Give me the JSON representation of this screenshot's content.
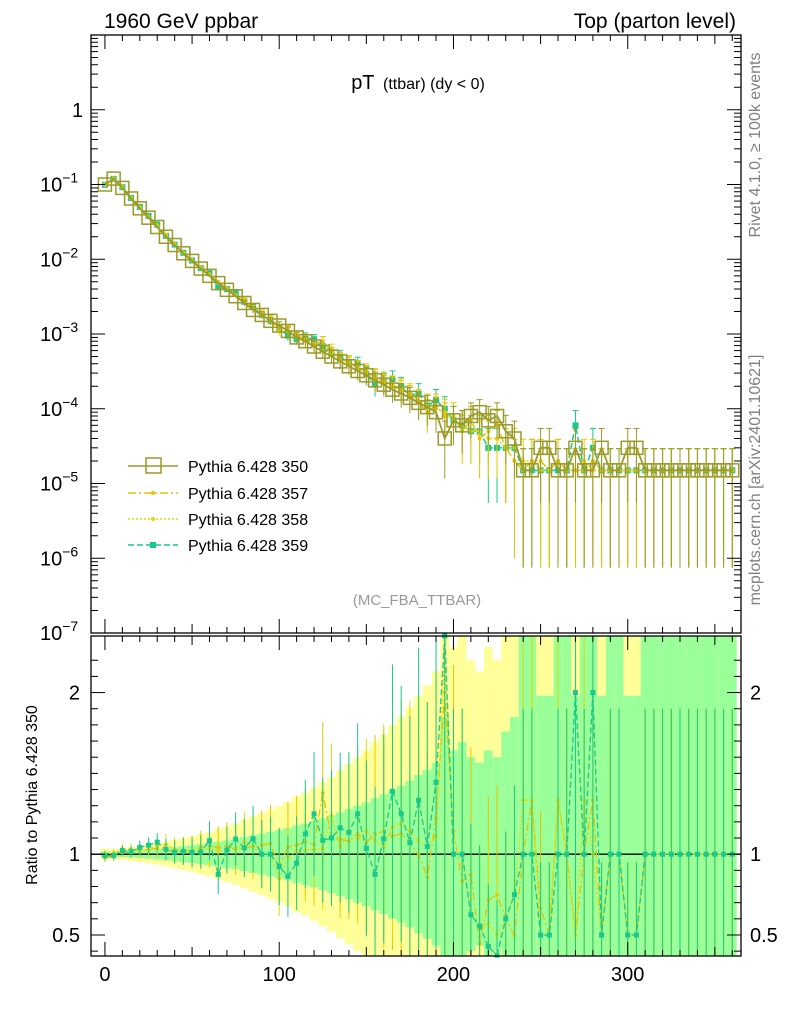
{
  "header": {
    "left": "1960 GeV ppbar",
    "right": "Top (parton level)"
  },
  "side": {
    "upper": "Rivet 4.1.0, ≥ 100k events",
    "lower": "mcplots.cern.ch [arXiv:2401.10621]"
  },
  "chart_data": {
    "type": "line",
    "title": "pT",
    "title_sub": "(ttbar) (dy < 0)",
    "analysis": "(MC_FBA_TTBAR)",
    "xlabel": "",
    "ylabel_ratio": "Ratio to Pythia 6.428 350",
    "xlim": [
      -8,
      365
    ],
    "ylim": [
      1e-07,
      10
    ],
    "ratio_ylim": [
      0.37,
      2.35
    ],
    "x_ticks": [
      0,
      100,
      200,
      300
    ],
    "y_ticks": [
      {
        "v": 1,
        "base": "1",
        "exp": ""
      },
      {
        "v": 0.1,
        "base": "10",
        "exp": "−1"
      },
      {
        "v": 0.01,
        "base": "10",
        "exp": "−2"
      },
      {
        "v": 0.001,
        "base": "10",
        "exp": "−3"
      },
      {
        "v": 0.0001,
        "base": "10",
        "exp": "−4"
      },
      {
        "v": 1e-05,
        "base": "10",
        "exp": "−5"
      },
      {
        "v": 1e-06,
        "base": "10",
        "exp": "−6"
      },
      {
        "v": 1e-07,
        "base": "10",
        "exp": "−7"
      }
    ],
    "ratio_ticks": [
      {
        "v": 0.5,
        "label": "0.5"
      },
      {
        "v": 1,
        "label": "1"
      },
      {
        "v": 2,
        "label": "2"
      }
    ],
    "colors": {
      "s350": "#9a9a2a",
      "s357": "#e6c200",
      "s358": "#e8d400",
      "s359": "#17c98a",
      "band_yellow": "#ffff99",
      "band_green": "#99ff99"
    },
    "series": [
      {
        "name": "Pythia 6.428 350",
        "key": "s350",
        "x": [
          0,
          5,
          10,
          15,
          20,
          25,
          30,
          35,
          40,
          45,
          50,
          55,
          60,
          65,
          70,
          75,
          80,
          85,
          90,
          95,
          100,
          105,
          110,
          115,
          120,
          125,
          130,
          135,
          140,
          145,
          150,
          155,
          160,
          165,
          170,
          175,
          180,
          185,
          190,
          195,
          200,
          205,
          210,
          215,
          220,
          225,
          230,
          235,
          240,
          245,
          250,
          255,
          260,
          265,
          270,
          275,
          280,
          285,
          290,
          295,
          300,
          305,
          310,
          315,
          320,
          325,
          330,
          335,
          340,
          345,
          350,
          355,
          360
        ],
        "values": [
          0.1,
          0.12,
          0.09,
          0.065,
          0.048,
          0.036,
          0.027,
          0.02,
          0.0155,
          0.012,
          0.0095,
          0.0075,
          0.006,
          0.0048,
          0.0039,
          0.0032,
          0.0026,
          0.0021,
          0.0018,
          0.0015,
          0.0013,
          0.0011,
          0.0009,
          0.0008,
          0.00068,
          0.00058,
          0.0005,
          0.00043,
          0.00037,
          0.00032,
          0.00028,
          0.00024,
          0.00021,
          0.00018,
          0.00016,
          0.00014,
          0.00012,
          0.000105,
          9e-05,
          4e-05,
          7e-05,
          6e-05,
          8e-05,
          9e-05,
          7e-05,
          8e-05,
          5e-05,
          4e-05,
          1.5e-05,
          1.5e-05,
          3e-05,
          3e-05,
          1.5e-05,
          1.5e-05,
          3e-05,
          1.5e-05,
          1.5e-05,
          3e-05,
          1.5e-05,
          1.5e-05,
          3e-05,
          3e-05,
          1.5e-05,
          1.5e-05,
          1.5e-05,
          1.5e-05,
          1.5e-05,
          1.5e-05,
          1.5e-05,
          1.5e-05,
          1.5e-05,
          1.5e-05,
          1.5e-05
        ]
      },
      {
        "name": "Pythia 6.428 357",
        "key": "s357",
        "x": [
          0,
          5,
          10,
          15,
          20,
          25,
          30,
          35,
          40,
          45,
          50,
          55,
          60,
          65,
          70,
          75,
          80,
          85,
          90,
          95,
          100,
          105,
          110,
          115,
          120,
          125,
          130,
          135,
          140,
          145,
          150,
          155,
          160,
          165,
          170,
          175,
          180,
          185,
          190,
          195,
          200,
          205,
          210,
          215,
          220,
          225,
          230,
          235,
          240,
          245,
          250,
          255,
          260,
          265,
          270,
          275,
          280,
          285,
          290,
          295,
          300,
          305,
          310,
          315,
          320,
          325,
          330,
          335,
          340,
          345,
          350,
          355,
          360
        ],
        "values": [
          0.098,
          0.118,
          0.091,
          0.066,
          0.05,
          0.037,
          0.028,
          0.0205,
          0.0158,
          0.0123,
          0.0097,
          0.0078,
          0.0063,
          0.005,
          0.0041,
          0.0033,
          0.0027,
          0.0022,
          0.0019,
          0.0016,
          0.0012,
          0.00115,
          0.00095,
          0.00086,
          0.00072,
          0.0008,
          0.00055,
          0.00047,
          0.0004,
          0.00036,
          0.0003,
          0.00027,
          0.00024,
          0.0002,
          0.00018,
          0.00015,
          0.00012,
          9e-05,
          0.00011,
          8e-05,
          8e-05,
          5e-05,
          7e-05,
          4e-05,
          5e-05,
          6e-05,
          3e-05,
          2e-05,
          1.5e-05,
          2e-05,
          2e-05,
          1.5e-05,
          2e-05,
          1.5e-05,
          1.5e-05,
          1.5e-05,
          2e-05,
          1.5e-05,
          1.5e-05,
          1.5e-05,
          1.5e-05,
          1.5e-05,
          1.5e-05,
          1.5e-05,
          1.5e-05,
          1.5e-05,
          1.5e-05,
          1.5e-05,
          1.5e-05,
          1.5e-05,
          1.5e-05,
          1.5e-05,
          1.5e-05
        ]
      },
      {
        "name": "Pythia 6.428 358",
        "key": "s358",
        "x": [
          0,
          5,
          10,
          15,
          20,
          25,
          30,
          35,
          40,
          45,
          50,
          55,
          60,
          65,
          70,
          75,
          80,
          85,
          90,
          95,
          100,
          105,
          110,
          115,
          120,
          125,
          130,
          135,
          140,
          145,
          150,
          155,
          160,
          165,
          170,
          175,
          180,
          185,
          190,
          195,
          200,
          205,
          210,
          215,
          220,
          225,
          230,
          235,
          240,
          245,
          250,
          255,
          260,
          265,
          270,
          275,
          280,
          285,
          290,
          295,
          300,
          305,
          310,
          315,
          320,
          325,
          330,
          335,
          340,
          345,
          350,
          355,
          360
        ],
        "values": [
          0.1,
          0.121,
          0.093,
          0.067,
          0.049,
          0.037,
          0.0285,
          0.0212,
          0.016,
          0.0122,
          0.0096,
          0.0077,
          0.0062,
          0.0049,
          0.004,
          0.0033,
          0.0028,
          0.0022,
          0.0018,
          0.0015,
          0.0011,
          0.00108,
          0.00092,
          0.00082,
          0.0007,
          0.0006,
          0.00062,
          0.00045,
          0.00042,
          0.00035,
          0.00032,
          0.00026,
          0.00022,
          0.00021,
          0.00019,
          0.00016,
          0.00013,
          0.00011,
          0.0001,
          9e-05,
          7e-05,
          6e-05,
          5e-05,
          5e-05,
          4e-05,
          4e-05,
          3e-05,
          3e-05,
          2e-05,
          2e-05,
          1.5e-05,
          1.5e-05,
          2e-05,
          1.5e-05,
          1.5e-05,
          2e-05,
          1.5e-05,
          1.5e-05,
          1.5e-05,
          1.5e-05,
          1.5e-05,
          1.5e-05,
          1.5e-05,
          1.5e-05,
          1.5e-05,
          1.5e-05,
          1.5e-05,
          1.5e-05,
          1.5e-05,
          1.5e-05,
          1.5e-05,
          1.5e-05,
          1.5e-05
        ]
      },
      {
        "name": "Pythia 6.428 359",
        "key": "s359",
        "x": [
          0,
          5,
          10,
          15,
          20,
          25,
          30,
          35,
          40,
          45,
          50,
          55,
          60,
          65,
          70,
          75,
          80,
          85,
          90,
          95,
          100,
          105,
          110,
          115,
          120,
          125,
          130,
          135,
          140,
          145,
          150,
          155,
          160,
          165,
          170,
          175,
          180,
          185,
          190,
          195,
          200,
          205,
          210,
          215,
          220,
          225,
          230,
          235,
          240,
          245,
          250,
          255,
          260,
          265,
          270,
          275,
          280,
          285,
          290,
          295,
          300,
          305,
          310,
          315,
          320,
          325,
          330,
          335,
          340,
          345,
          350,
          355,
          360
        ],
        "values": [
          0.099,
          0.119,
          0.092,
          0.066,
          0.05,
          0.038,
          0.029,
          0.0206,
          0.0157,
          0.0122,
          0.0096,
          0.0076,
          0.0065,
          0.0042,
          0.004,
          0.0035,
          0.0027,
          0.0023,
          0.0018,
          0.0015,
          0.0012,
          0.00095,
          0.00085,
          0.0009,
          0.00085,
          0.00063,
          0.00055,
          0.0005,
          0.00042,
          0.0004,
          0.00029,
          0.00021,
          0.00023,
          0.00025,
          0.0002,
          0.00015,
          0.00016,
          0.00011,
          0.00013,
          0.0001,
          7e-05,
          6e-05,
          5e-05,
          5e-05,
          3e-05,
          3e-05,
          3e-05,
          3e-05,
          1.5e-05,
          1.5e-05,
          1.5e-05,
          1.5e-05,
          1.5e-05,
          1.5e-05,
          6e-05,
          1.5e-05,
          3e-05,
          1.5e-05,
          1.5e-05,
          1.5e-05,
          1.5e-05,
          1.5e-05,
          1.5e-05,
          1.5e-05,
          1.5e-05,
          1.5e-05,
          1.5e-05,
          1.5e-05,
          1.5e-05,
          1.5e-05,
          1.5e-05,
          1.5e-05,
          1.5e-05
        ]
      }
    ]
  }
}
